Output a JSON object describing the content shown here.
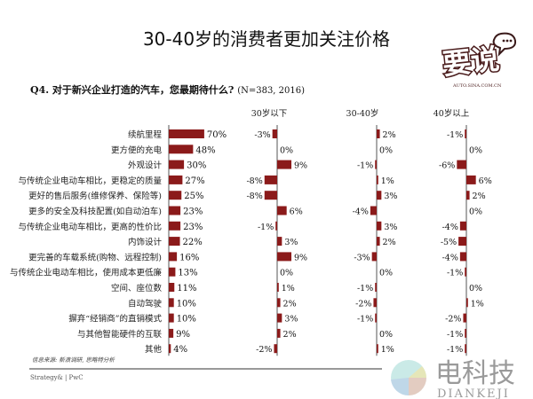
{
  "title": "30-40岁的消费者更加关注价格",
  "question": "Q4. 对于新兴企业打造的汽车，您最期待什么?",
  "sample_note": "(N=383, 2016)",
  "source": "信息来源: 新浪调研, 思略特分析",
  "footer": "Strategy& | PwC",
  "logo_text": "要说 AUTO.SINA.COM.CN",
  "watermark": {
    "cn": "电科技",
    "en": "DIANKEJI"
  },
  "colors": {
    "bar": "#8b1a1a",
    "axis": "#555555"
  },
  "chart_data": [
    {
      "type": "bar",
      "orientation": "horizontal",
      "categories": [
        "续航里程",
        "更方便的充电",
        "外观设计",
        "与传统企业电动车相比，更稳定的质量",
        "更好的售后服务(维修保养、保险等)",
        "更多的安全及科技配置(如自动泊车)",
        "与传统企业电动车相比，更高的性价比",
        "内饰设计",
        "更完善的车载系统(购物、远程控制)",
        "与传统企业电动车相比，使用成本更低廉",
        "空间、座位数",
        "自动驾驶",
        "摒弃“经销商”的直销模式",
        "与其他智能硬件的互联",
        "其他"
      ],
      "values": [
        70,
        48,
        30,
        27,
        25,
        23,
        23,
        22,
        16,
        13,
        11,
        10,
        10,
        9,
        4
      ],
      "unit": "%"
    },
    {
      "type": "bar",
      "orientation": "horizontal",
      "title": "30岁以下",
      "unit": "%",
      "values": [
        -3,
        0,
        9,
        -8,
        -8,
        6,
        -1,
        3,
        9,
        0,
        1,
        2,
        3,
        2,
        -2
      ]
    },
    {
      "type": "bar",
      "orientation": "horizontal",
      "title": "30-40岁",
      "unit": "%",
      "values": [
        2,
        0,
        -1,
        1,
        3,
        -4,
        3,
        2,
        -3,
        0,
        -1,
        -2,
        -1,
        0,
        1
      ]
    },
    {
      "type": "bar",
      "orientation": "horizontal",
      "title": "40岁以上",
      "unit": "%",
      "values": [
        -1,
        0,
        -6,
        6,
        2,
        0,
        -4,
        -5,
        -4,
        -1,
        0,
        1,
        -2,
        -1,
        -1
      ]
    }
  ]
}
